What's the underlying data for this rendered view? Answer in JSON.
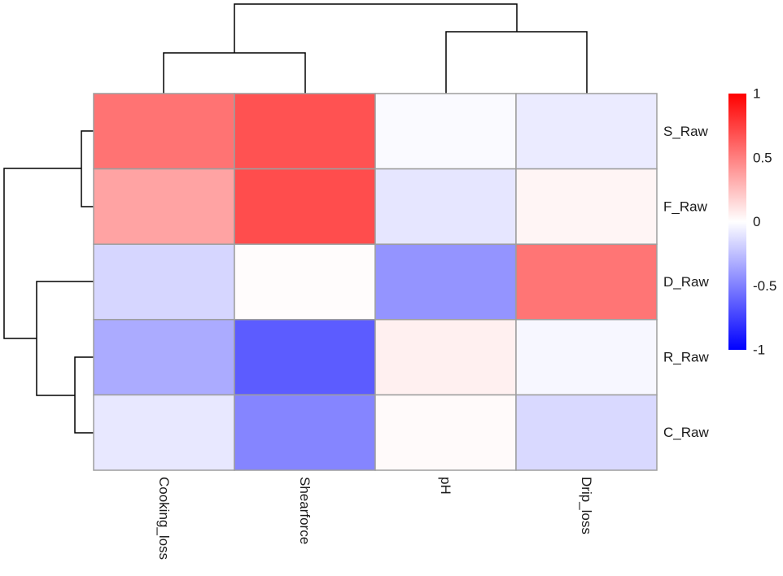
{
  "chart_data": {
    "type": "heatmap",
    "rows": [
      "S_Raw",
      "F_Raw",
      "D_Raw",
      "R_Raw",
      "C_Raw"
    ],
    "columns": [
      "Cooking_loss",
      "Shearforce",
      "pH",
      "Drip_loss"
    ],
    "values": [
      [
        0.55,
        0.68,
        -0.02,
        -0.08
      ],
      [
        0.36,
        0.7,
        -0.1,
        0.04
      ],
      [
        -0.16,
        0.01,
        -0.42,
        0.54
      ],
      [
        -0.33,
        -0.64,
        0.06,
        -0.03
      ],
      [
        -0.09,
        -0.48,
        0.02,
        -0.15
      ]
    ],
    "value_range": [
      -1,
      1
    ],
    "colorscale": {
      "low": "#0000ff",
      "mid": "#ffffff",
      "high": "#ff0000"
    },
    "cell_border_color": "#9e9e9e",
    "legend": {
      "placement": "right",
      "ticks": [
        "1",
        "0.5",
        "0",
        "-0.5",
        "-1"
      ]
    },
    "row_dendrogram": {
      "merge_order": [
        [
          "S_Raw",
          "F_Raw"
        ],
        [
          "R_Raw",
          "C_Raw"
        ],
        [
          "D_Raw",
          [
            "R_Raw",
            "C_Raw"
          ]
        ],
        [
          [
            "S_Raw",
            "F_Raw"
          ],
          [
            "D_Raw",
            [
              "R_Raw",
              "C_Raw"
            ]
          ]
        ]
      ]
    },
    "column_dendrogram": {
      "merge_order": [
        [
          "Cooking_loss",
          "Shearforce"
        ],
        [
          "pH",
          "Drip_loss"
        ],
        [
          [
            "Cooking_loss",
            "Shearforce"
          ],
          [
            "pH",
            "Drip_loss"
          ]
        ]
      ]
    }
  }
}
